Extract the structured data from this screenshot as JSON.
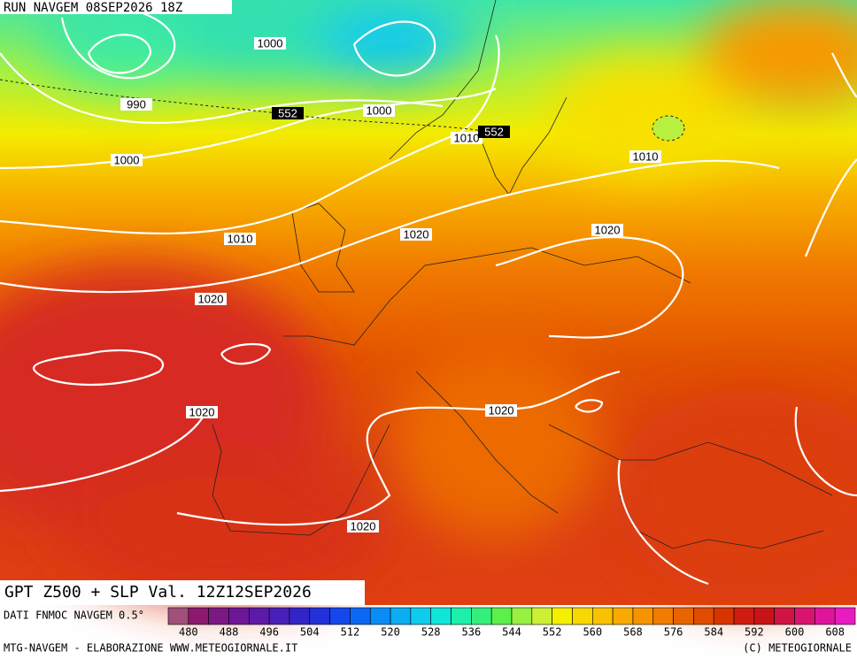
{
  "header": {
    "title": "RUN NAVGEM 08SEP2026 18Z"
  },
  "map": {
    "isobar_labels": [
      "1000",
      "990",
      "552",
      "1000",
      "1010",
      "552",
      "1000",
      "1010",
      "1010",
      "1020",
      "1020",
      "1020",
      "1020",
      "1020",
      "1020"
    ]
  },
  "footer": {
    "title": "GPT Z500 + SLP Val. 12Z12SEP2026",
    "source": "DATI FNMOC NAVGEM 0.5°",
    "credit_left": "MTG-NAVGEM - ELABORAZIONE WWW.METEOGIORNALE.IT",
    "credit_right": "(C) METEOGIORNALE"
  },
  "colorbar": {
    "colors": [
      "#a0507a",
      "#8c1870",
      "#7c1884",
      "#6c1896",
      "#5c1aa8",
      "#4a1eb8",
      "#3424c8",
      "#2232d8",
      "#1448ea",
      "#0c68f4",
      "#0a8cf6",
      "#0caef2",
      "#10ccec",
      "#10e6d8",
      "#1cf0aa",
      "#34f07a",
      "#5cf04a",
      "#98f040",
      "#ccf034",
      "#f6f000",
      "#f8d800",
      "#f8c200",
      "#f8aa00",
      "#f69400",
      "#f07c00",
      "#e86400",
      "#e04c00",
      "#d83400",
      "#d01c10",
      "#c81418",
      "#d01446",
      "#d81470",
      "#e0149c",
      "#e81cc0"
    ],
    "labels": [
      480,
      488,
      496,
      504,
      512,
      520,
      528,
      536,
      544,
      552,
      560,
      568,
      576,
      584,
      592,
      600,
      608
    ]
  }
}
